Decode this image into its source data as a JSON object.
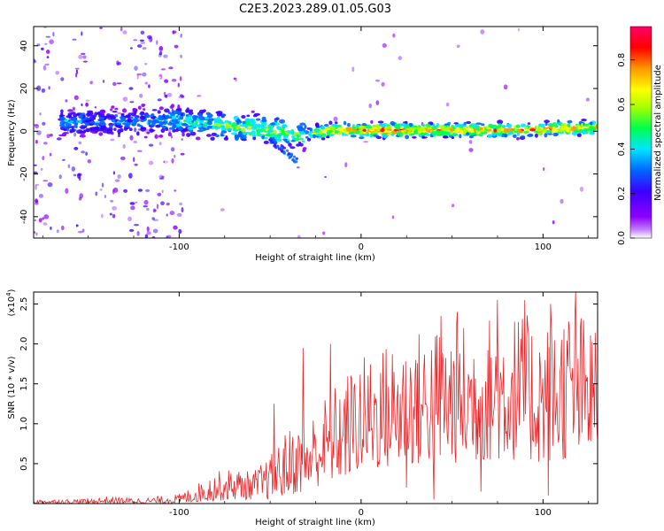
{
  "title": "C2E3.2023.289.01.05.G03",
  "chart_data": [
    {
      "type": "heatmap",
      "xlabel": "Height of straight line (km)",
      "ylabel": "Frequency (Hz)",
      "xlim": [
        -180,
        130
      ],
      "ylim": [
        -50,
        49
      ],
      "x_ticks": [
        -100,
        0,
        100
      ],
      "y_ticks": [
        -40,
        -20,
        0,
        20,
        40
      ],
      "z_label": "Normalized spectral amplitude",
      "z_range": [
        0.0,
        0.95
      ],
      "z_ticks": [
        0.0,
        0.2,
        0.4,
        0.6,
        0.8
      ],
      "colormap": [
        "#ffffff",
        "#8f00ff",
        "#3b00ff",
        "#0066ff",
        "#00e5ff",
        "#00ff4c",
        "#a8ff00",
        "#ffff00",
        "#ff9900",
        "#ff0000",
        "#ff0066"
      ],
      "ridge": [
        {
          "x": -160,
          "f": 4.5,
          "a": 0.35
        },
        {
          "x": -140,
          "f": 4.0,
          "a": 0.3
        },
        {
          "x": -120,
          "f": 4.5,
          "a": 0.35
        },
        {
          "x": -100,
          "f": 5.0,
          "a": 0.4
        },
        {
          "x": -90,
          "f": 4.0,
          "a": 0.45
        },
        {
          "x": -80,
          "f": 3.0,
          "a": 0.5
        },
        {
          "x": -70,
          "f": 2.0,
          "a": 0.55
        },
        {
          "x": -55,
          "f": 1.0,
          "a": 0.6
        },
        {
          "x": -45,
          "f": 0.0,
          "a": 0.55
        },
        {
          "x": -30,
          "f": -2.0,
          "a": 0.5
        },
        {
          "x": -20,
          "f": 0.5,
          "a": 0.7
        },
        {
          "x": 0,
          "f": 0.5,
          "a": 0.85
        },
        {
          "x": 30,
          "f": 0.5,
          "a": 0.75
        },
        {
          "x": 60,
          "f": 0.5,
          "a": 0.75
        },
        {
          "x": 90,
          "f": 0.5,
          "a": 0.75
        },
        {
          "x": 110,
          "f": 1.5,
          "a": 0.8
        },
        {
          "x": 130,
          "f": 1.5,
          "a": 0.7
        }
      ]
    },
    {
      "type": "line",
      "xlabel": "Height of straight line (km)",
      "ylabel": "SNR (10 * v/v)",
      "y_multiplier": "(x10",
      "y_multiplier_exp": "4",
      "y_multiplier_close": ")",
      "xlim": [
        -180,
        130
      ],
      "ylim": [
        0,
        2.65
      ],
      "x_ticks": [
        -100,
        0,
        100
      ],
      "y_ticks": [
        0.5,
        1.0,
        1.5,
        2.0,
        2.5
      ],
      "color": "#e8262a",
      "envelope": [
        {
          "x": -180,
          "lo": 0.0,
          "hi": 0.05
        },
        {
          "x": -150,
          "lo": 0.0,
          "hi": 0.06
        },
        {
          "x": -140,
          "lo": 0.0,
          "hi": 0.09
        },
        {
          "x": -120,
          "lo": 0.0,
          "hi": 0.07
        },
        {
          "x": -100,
          "lo": 0.0,
          "hi": 0.12
        },
        {
          "x": -90,
          "lo": 0.02,
          "hi": 0.25
        },
        {
          "x": -80,
          "lo": 0.03,
          "hi": 0.4
        },
        {
          "x": -70,
          "lo": 0.05,
          "hi": 0.45
        },
        {
          "x": -60,
          "lo": 0.05,
          "hi": 0.4
        },
        {
          "x": -50,
          "lo": 0.05,
          "hi": 0.6
        },
        {
          "x": -40,
          "lo": 0.1,
          "hi": 0.95
        },
        {
          "x": -30,
          "lo": 0.15,
          "hi": 1.05
        },
        {
          "x": -20,
          "lo": 0.25,
          "hi": 1.35
        },
        {
          "x": -10,
          "lo": 0.3,
          "hi": 1.6
        },
        {
          "x": 0,
          "lo": 0.4,
          "hi": 1.85
        },
        {
          "x": 20,
          "lo": 0.45,
          "hi": 2.1
        },
        {
          "x": 40,
          "lo": 0.5,
          "hi": 2.25
        },
        {
          "x": 60,
          "lo": 0.5,
          "hi": 2.3
        },
        {
          "x": 80,
          "lo": 0.55,
          "hi": 2.45
        },
        {
          "x": 100,
          "lo": 0.5,
          "hi": 2.3
        },
        {
          "x": 115,
          "lo": 0.55,
          "hi": 2.55
        },
        {
          "x": 130,
          "lo": 0.6,
          "hi": 2.2
        }
      ],
      "spikes": [
        {
          "x": -48,
          "y": 1.25
        },
        {
          "x": -32,
          "y": 1.95
        },
        {
          "x": -17,
          "y": 2.0
        },
        {
          "x": 44,
          "y": 2.35
        },
        {
          "x": 53,
          "y": 2.4
        },
        {
          "x": 75,
          "y": 2.55
        },
        {
          "x": 90,
          "y": 2.55
        },
        {
          "x": 104,
          "y": 2.5
        },
        {
          "x": 118,
          "y": 2.65
        },
        {
          "x": 40,
          "y": 0.05
        },
        {
          "x": 25,
          "y": 0.2
        },
        {
          "x": 103,
          "y": 0.1
        },
        {
          "x": 66,
          "y": 0.15
        }
      ]
    }
  ]
}
